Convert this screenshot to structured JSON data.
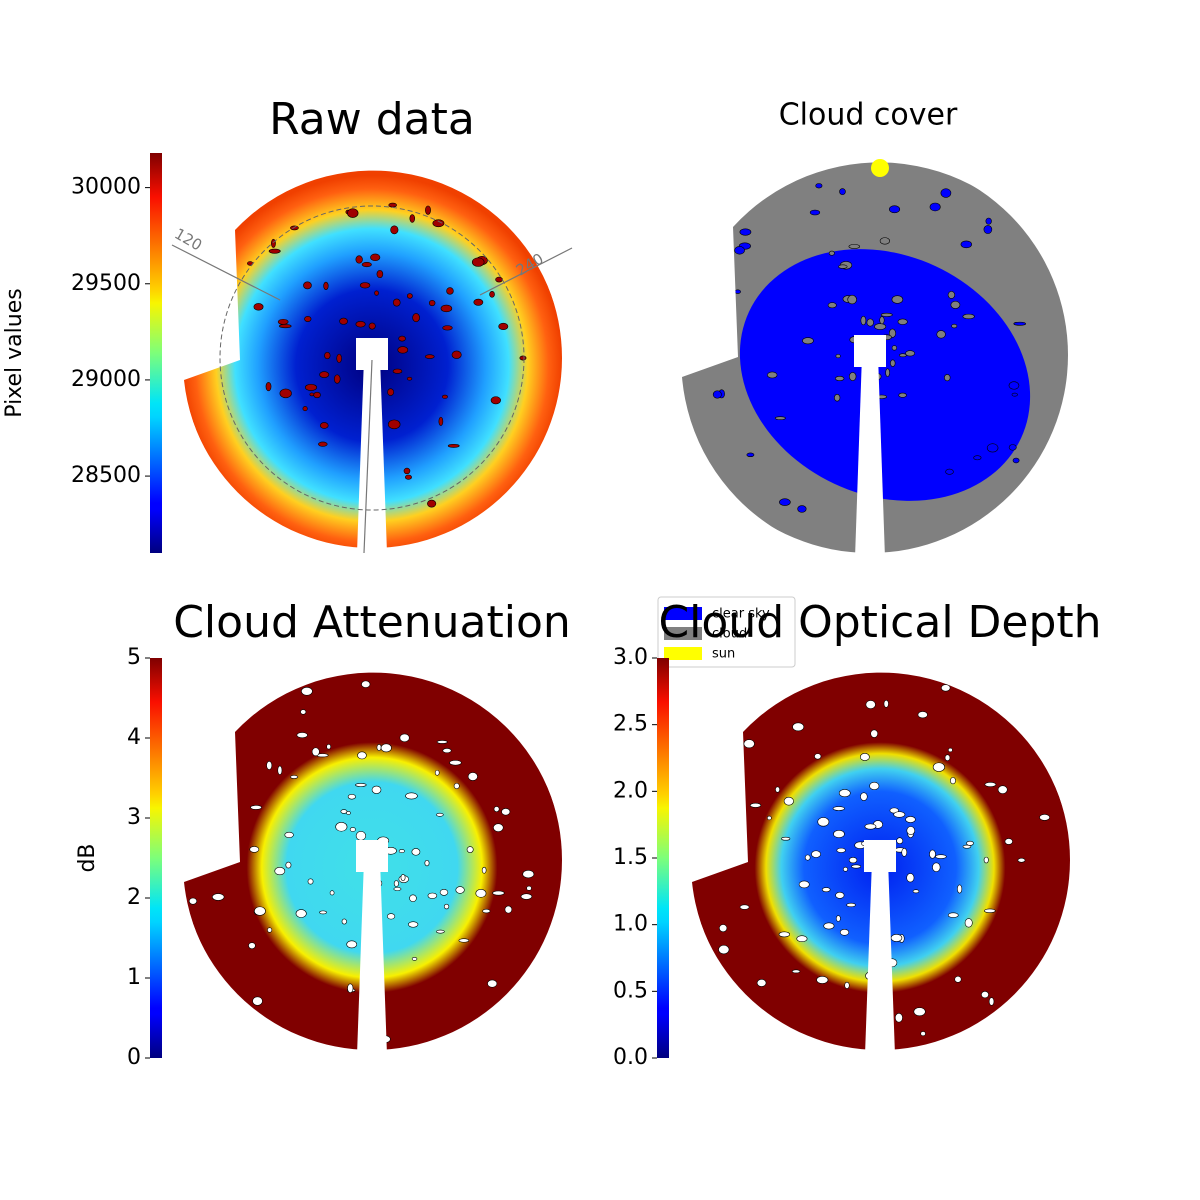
{
  "chart_data": [
    {
      "type": "heatmap",
      "title": "Raw data",
      "colorbar_label": "Pixel values",
      "colormap": "jet",
      "clim": [
        28100,
        30180
      ],
      "cticks": [
        28500,
        29000,
        29500,
        30000
      ],
      "annotations": [
        "120",
        "240"
      ]
    },
    {
      "type": "categorical",
      "title": "Cloud cover",
      "series": [
        {
          "name": "clear sky",
          "color": "#0000ff"
        },
        {
          "name": "cloud",
          "color": "#808080"
        },
        {
          "name": "sun",
          "color": "#ffff00"
        }
      ]
    },
    {
      "type": "heatmap",
      "title": "Cloud Attenuation",
      "colorbar_label": "dB",
      "colormap": "jet",
      "clim": [
        0,
        5
      ],
      "cticks": [
        0,
        1,
        2,
        3,
        4,
        5
      ]
    },
    {
      "type": "heatmap",
      "title": "Cloud Optical Depth",
      "colormap": "jet",
      "clim": [
        0,
        3
      ],
      "cticks": [
        {
          "value": 0,
          "label": "0.0"
        },
        0.5,
        {
          "value": 1,
          "label": "1.0"
        },
        1.5,
        {
          "value": 2,
          "label": "2.0"
        },
        2.5,
        {
          "value": 3,
          "label": "3.0"
        }
      ]
    }
  ]
}
